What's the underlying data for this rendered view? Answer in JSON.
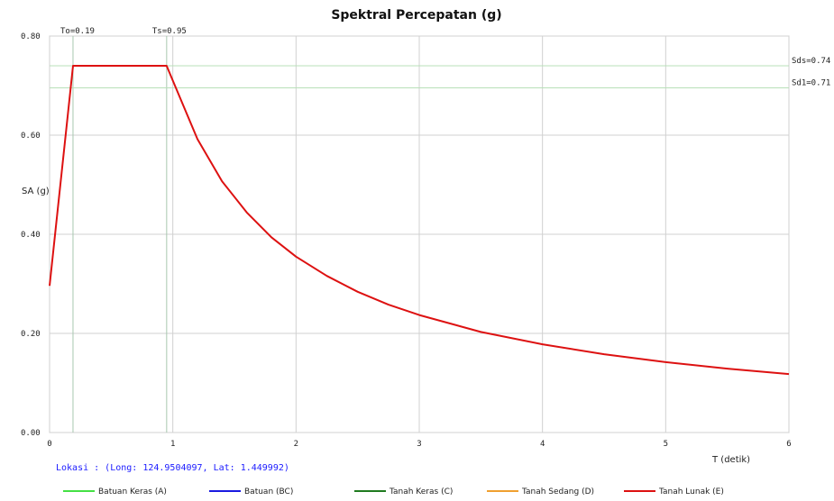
{
  "chart_data": {
    "type": "line",
    "title": "Spektral Percepatan (g)",
    "xlabel": "T (detik)",
    "ylabel": "SA (g)",
    "xlim": [
      0,
      6
    ],
    "ylim": [
      0,
      0.8
    ],
    "x_ticks": [
      {
        "value": 0,
        "label": "0"
      },
      {
        "value": 1,
        "label": "1"
      },
      {
        "value": 2,
        "label": "2"
      },
      {
        "value": 3,
        "label": "3"
      },
      {
        "value": 4,
        "label": "4"
      },
      {
        "value": 5,
        "label": "5"
      },
      {
        "value": 6,
        "label": "6"
      }
    ],
    "y_ticks": [
      {
        "value": 0.0,
        "label": "0.00"
      },
      {
        "value": 0.2,
        "label": "0.20"
      },
      {
        "value": 0.4,
        "label": "0.40"
      },
      {
        "value": 0.6,
        "label": "0.60"
      },
      {
        "value": 0.8,
        "label": "0.80"
      }
    ],
    "grid": true,
    "reference_lines": {
      "vertical": [
        {
          "value": 0.19,
          "label": "To=0.19"
        },
        {
          "value": 0.95,
          "label": "Ts=0.95"
        }
      ],
      "horizontal": [
        {
          "value": 0.74,
          "label": "Sds=0.74"
        },
        {
          "value": 0.71,
          "label": "Sd1=0.71"
        }
      ]
    },
    "series": [
      {
        "name": "Tanah Lunak (E)",
        "color": "#dd1111",
        "x": [
          0,
          0.19,
          0.95,
          1.0,
          1.2,
          1.4,
          1.6,
          1.8,
          2.0,
          2.25,
          2.5,
          2.75,
          3.0,
          3.5,
          4.0,
          4.5,
          5.0,
          5.5,
          6.0
        ],
        "y": [
          0.296,
          0.74,
          0.74,
          0.71,
          0.592,
          0.507,
          0.444,
          0.394,
          0.355,
          0.316,
          0.284,
          0.258,
          0.237,
          0.203,
          0.178,
          0.158,
          0.142,
          0.129,
          0.118
        ]
      }
    ],
    "legend": [
      {
        "name": "Batuan Keras (A)",
        "color": "#44e044"
      },
      {
        "name": "Batuan (BC)",
        "color": "#1a1ae0"
      },
      {
        "name": "Tanah Keras (C)",
        "color": "#1f7a1f"
      },
      {
        "name": "Tanah Sedang (D)",
        "color": "#f0a030"
      },
      {
        "name": "Tanah Lunak (E)",
        "color": "#dd1111"
      }
    ],
    "legend_position": "bottom",
    "location_text": "Lokasi :  (Long: 124.9504097, Lat: 1.449992)"
  }
}
